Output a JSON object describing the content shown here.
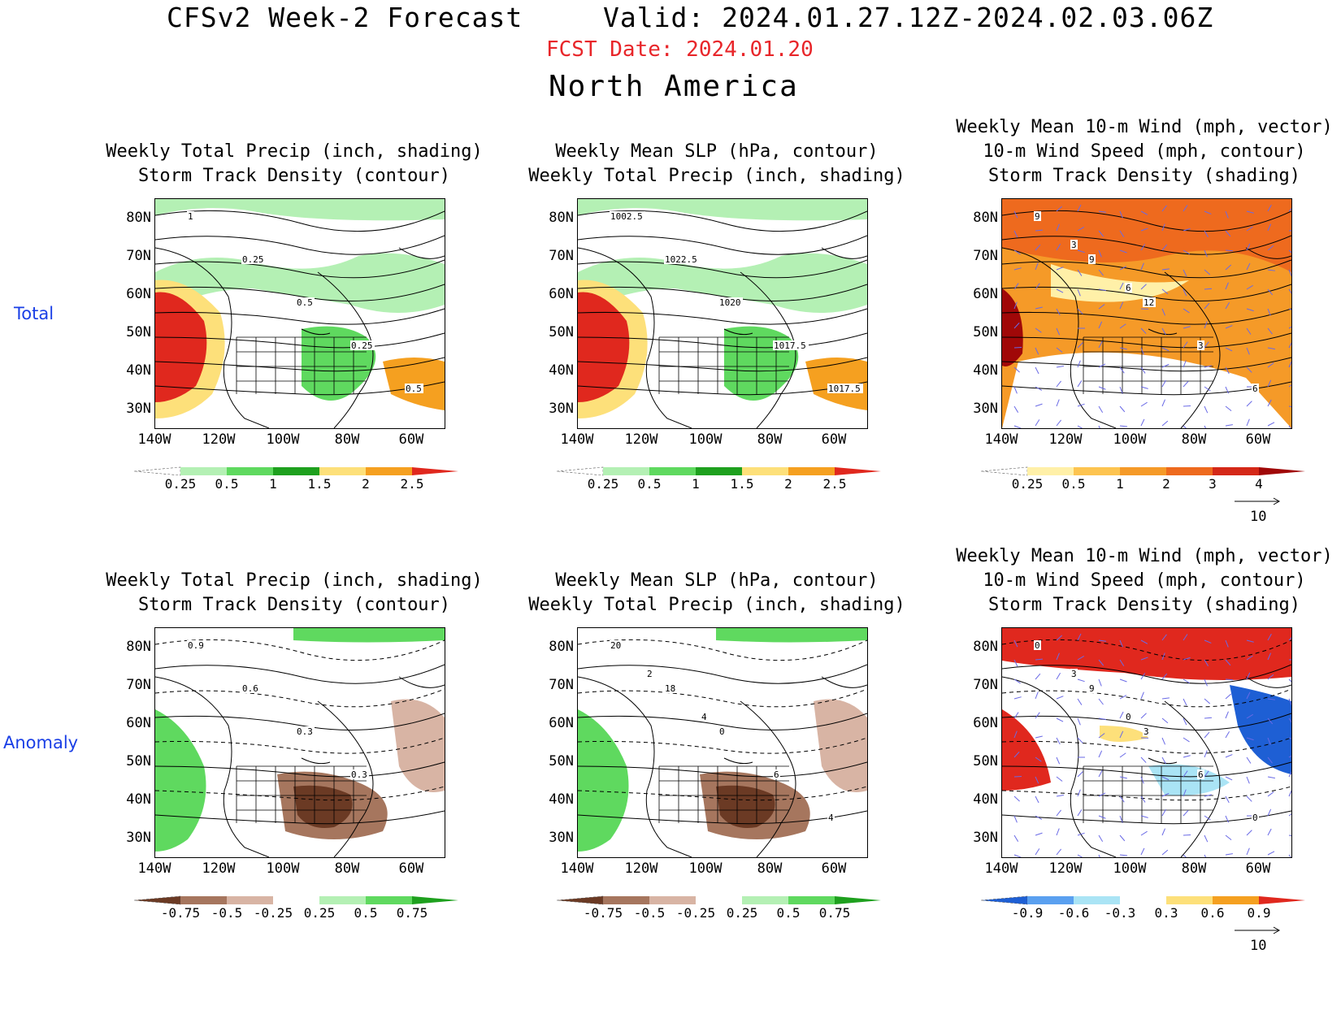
{
  "header": {
    "main_title": "CFSv2 Week-2 Forecast",
    "valid": "Valid: 2024.01.27.12Z-2024.02.03.06Z",
    "fcst_date": "FCST Date: 2024.01.20",
    "region": "North America"
  },
  "rows": [
    "Total",
    "Anomaly"
  ],
  "lat_ticks": [
    "80N",
    "70N",
    "60N",
    "50N",
    "40N",
    "30N"
  ],
  "lon_ticks": [
    "140W",
    "120W",
    "100W",
    "80W",
    "60W"
  ],
  "panels": [
    {
      "id": "total-precip",
      "title": "Weekly Total Precip (inch, shading)\nStorm Track Density (contour)",
      "contour_labels": [
        "1",
        "0.25",
        "0.5",
        "0.25",
        "0.5"
      ],
      "colorbar": [
        "0.25",
        "0.5",
        "1",
        "1.5",
        "2",
        "2.5"
      ]
    },
    {
      "id": "total-slp",
      "title": "Weekly Mean SLP (hPa, contour)\nWeekly Total Precip (inch, shading)",
      "contour_labels": [
        "1002.5",
        "1022.5",
        "1020",
        "1017.5",
        "1017.5"
      ],
      "colorbar": [
        "0.25",
        "0.5",
        "1",
        "1.5",
        "2",
        "2.5"
      ]
    },
    {
      "id": "total-wind",
      "title": "Weekly Mean 10-m Wind (mph, vector)\n10-m Wind Speed (mph, contour)\nStorm Track Density (shading)",
      "contour_labels": [
        "9",
        "9",
        "12",
        "3",
        "6",
        "3",
        "6"
      ],
      "colorbar": [
        "0.25",
        "0.5",
        "1",
        "2",
        "3",
        "4"
      ],
      "vector_ref": "10"
    },
    {
      "id": "anom-precip",
      "title": "Weekly Total Precip (inch, shading)\nStorm Track Density (contour)",
      "contour_labels": [
        "0.9",
        "0.6",
        "0.3",
        "0.3"
      ],
      "colorbar": [
        "-0.75",
        "-0.5",
        "-0.25",
        "0.25",
        "0.5",
        "0.75"
      ]
    },
    {
      "id": "anom-slp",
      "title": "Weekly Mean SLP (hPa, contour)\nWeekly Total Precip (inch, shading)",
      "contour_labels": [
        "20",
        "18",
        "0",
        "6",
        "4",
        "2",
        "4"
      ],
      "colorbar": [
        "-0.75",
        "-0.5",
        "-0.25",
        "0.25",
        "0.5",
        "0.75"
      ]
    },
    {
      "id": "anom-wind",
      "title": "Weekly Mean 10-m Wind (mph, vector)\n10-m Wind Speed (mph, contour)\nStorm Track Density (shading)",
      "contour_labels": [
        "0",
        "9",
        "3",
        "6",
        "0",
        "3",
        "0"
      ],
      "colorbar": [
        "-0.9",
        "-0.6",
        "-0.3",
        "0.3",
        "0.6",
        "0.9"
      ],
      "vector_ref": "10"
    }
  ],
  "colors": {
    "fcst_date": "#e8262a",
    "row_label": "#1a3fe6",
    "precip_total": [
      "#ffffff",
      "#b4f0b4",
      "#5fd95f",
      "#1ea01e",
      "#fde07a",
      "#f5a020",
      "#e0281e"
    ],
    "storm_total": [
      "#ffffff",
      "#fff0a8",
      "#fdc450",
      "#f59a28",
      "#ee6a1e",
      "#d42818",
      "#a00808"
    ],
    "precip_anom": [
      "#6b3a24",
      "#a6765e",
      "#d8b4a4",
      "#ffffff",
      "#b4f0b4",
      "#5fd95f",
      "#1ea01e"
    ],
    "storm_anom": [
      "#1e5fd4",
      "#5aa0f0",
      "#aae4f5",
      "#ffffff",
      "#fde07a",
      "#f5a020",
      "#e0281e"
    ]
  }
}
